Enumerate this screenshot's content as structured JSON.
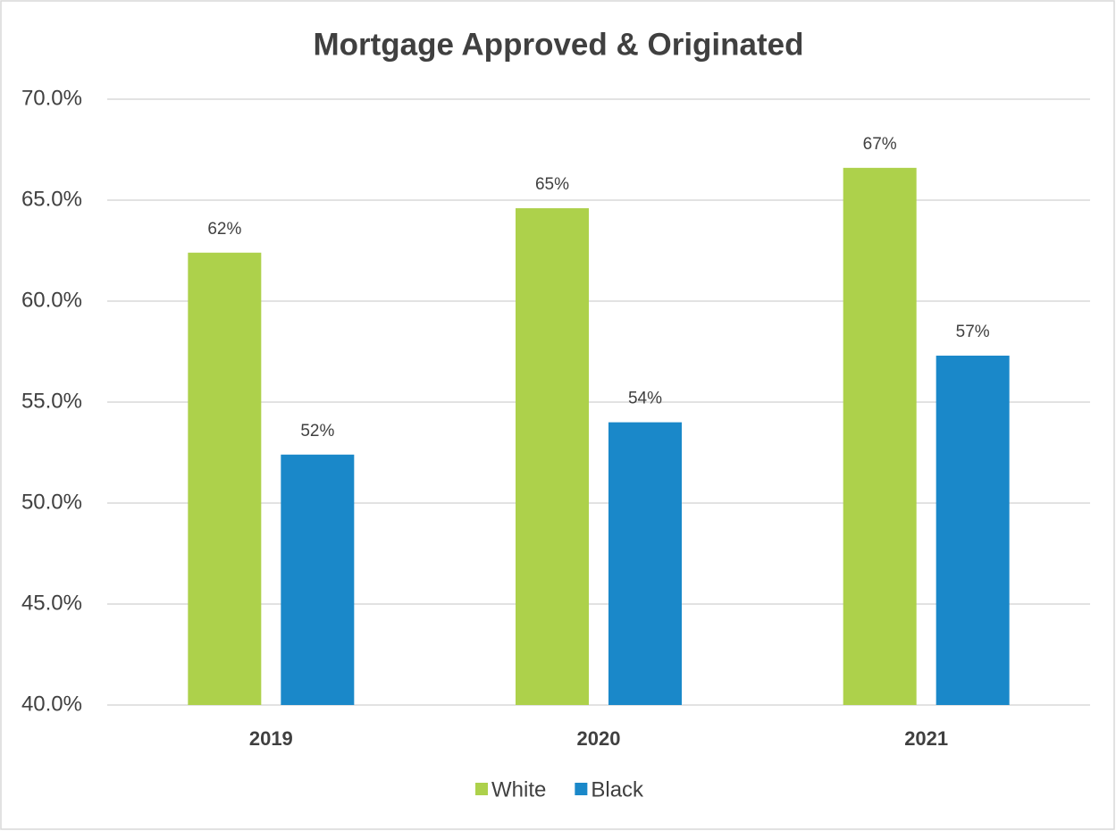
{
  "chart_data": {
    "type": "bar",
    "title": "Mortgage Approved & Originated",
    "categories": [
      "2019",
      "2020",
      "2021"
    ],
    "series": [
      {
        "name": "White",
        "color": "#add14b",
        "values": [
          62.4,
          64.6,
          66.6
        ],
        "value_labels": [
          "62%",
          "65%",
          "67%"
        ]
      },
      {
        "name": "Black",
        "color": "#1a88c9",
        "values": [
          52.4,
          54.0,
          57.3
        ],
        "value_labels": [
          "52%",
          "54%",
          "57%"
        ]
      }
    ],
    "ylim": [
      40,
      70
    ],
    "yticks": [
      {
        "value": 40,
        "label": "40.0%"
      },
      {
        "value": 45,
        "label": "45.0%"
      },
      {
        "value": 50,
        "label": "50.0%"
      },
      {
        "value": 55,
        "label": "55.0%"
      },
      {
        "value": 60,
        "label": "60.0%"
      },
      {
        "value": 65,
        "label": "65.0%"
      },
      {
        "value": 70,
        "label": "70.0%"
      }
    ],
    "grid": true,
    "legend": "bottom"
  }
}
